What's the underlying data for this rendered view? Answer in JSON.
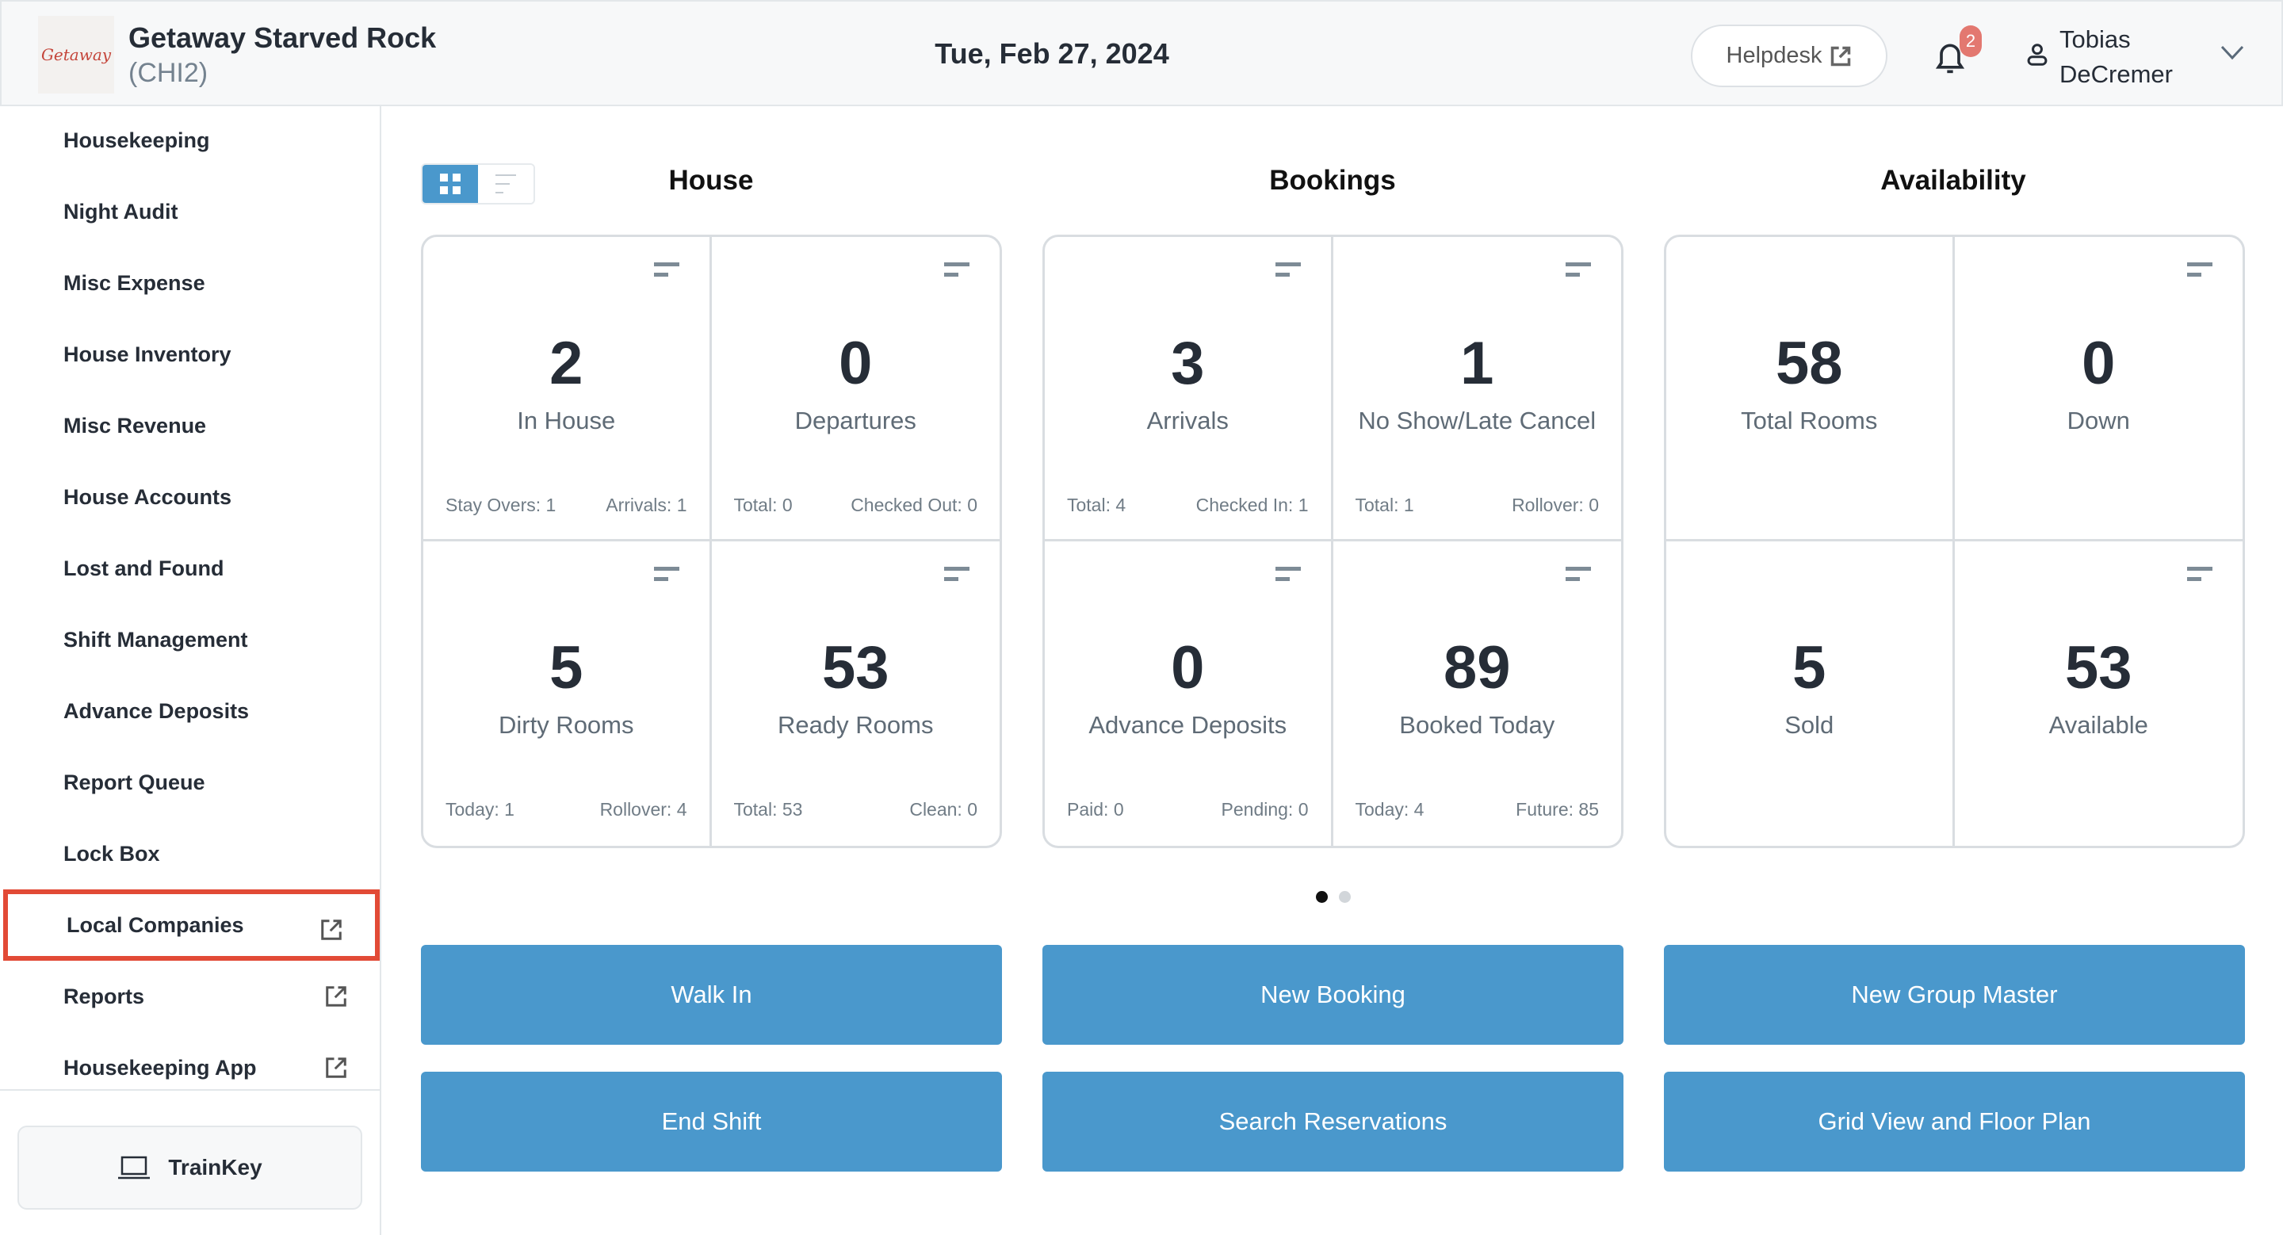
{
  "header": {
    "logo_text": "Getaway",
    "property_name": "Getaway Starved Rock",
    "property_code": "(CHI2)",
    "date": "Tue, Feb 27, 2024",
    "helpdesk_label": "Helpdesk",
    "notification_count": "2",
    "user_first": "Tobias",
    "user_last": "DeCremer"
  },
  "sidebar": {
    "items": [
      {
        "label": "Housekeeping"
      },
      {
        "label": "Night Audit"
      },
      {
        "label": "Misc Expense"
      },
      {
        "label": "House Inventory"
      },
      {
        "label": "Misc Revenue"
      },
      {
        "label": "House Accounts"
      },
      {
        "label": "Lost and Found"
      },
      {
        "label": "Shift Management"
      },
      {
        "label": "Advance Deposits"
      },
      {
        "label": "Report Queue"
      },
      {
        "label": "Lock Box"
      },
      {
        "label": "Local Companies",
        "external": true,
        "highlighted": true
      },
      {
        "label": "Reports",
        "external": true
      },
      {
        "label": "Housekeeping App",
        "external": true
      }
    ],
    "trainkey_label": "TrainKey"
  },
  "main": {
    "view_mode": "grid",
    "sections": [
      {
        "title": "House",
        "cards": [
          {
            "value": "2",
            "label": "In House",
            "left": "Stay Overs: 1",
            "right": "Arrivals: 1",
            "menu": true
          },
          {
            "value": "0",
            "label": "Departures",
            "left": "Total: 0",
            "right": "Checked Out: 0",
            "menu": true
          },
          {
            "value": "5",
            "label": "Dirty Rooms",
            "left": "Today: 1",
            "right": "Rollover: 4",
            "menu": true
          },
          {
            "value": "53",
            "label": "Ready Rooms",
            "left": "Total: 53",
            "right": "Clean: 0",
            "menu": true
          }
        ]
      },
      {
        "title": "Bookings",
        "cards": [
          {
            "value": "3",
            "label": "Arrivals",
            "left": "Total: 4",
            "right": "Checked In: 1",
            "menu": true
          },
          {
            "value": "1",
            "label": "No Show/Late Cancel",
            "left": "Total: 1",
            "right": "Rollover: 0",
            "menu": true
          },
          {
            "value": "0",
            "label": "Advance Deposits",
            "left": "Paid: 0",
            "right": "Pending: 0",
            "menu": true
          },
          {
            "value": "89",
            "label": "Booked Today",
            "left": "Today: 4",
            "right": "Future: 85",
            "menu": true
          }
        ]
      },
      {
        "title": "Availability",
        "cards": [
          {
            "value": "58",
            "label": "Total Rooms",
            "left": "",
            "right": "",
            "menu": false
          },
          {
            "value": "0",
            "label": "Down",
            "left": "",
            "right": "",
            "menu": true
          },
          {
            "value": "5",
            "label": "Sold",
            "left": "",
            "right": "",
            "menu": false
          },
          {
            "value": "53",
            "label": "Available",
            "left": "",
            "right": "",
            "menu": true
          }
        ]
      }
    ],
    "carousel": {
      "pages": 2,
      "current": 1
    },
    "actions": [
      "Walk In",
      "New Booking",
      "New Group Master",
      "End Shift",
      "Search Reservations",
      "Grid View and Floor Plan"
    ]
  },
  "colors": {
    "accent": "#4a98cc",
    "highlight": "#e24a36",
    "badge": "#e37870"
  }
}
